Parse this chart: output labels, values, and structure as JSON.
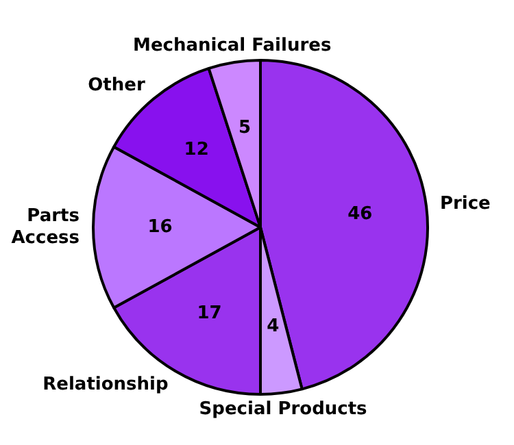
{
  "chart_data": {
    "type": "pie",
    "categories": [
      "Price",
      "Special Products",
      "Relationship",
      "Parts Access",
      "Other",
      "Mechanical Failures"
    ],
    "values": [
      46,
      4,
      17,
      16,
      12,
      5
    ],
    "colors": [
      "#9933ee",
      "#cc99ff",
      "#9933ee",
      "#bb77ff",
      "#8811ee",
      "#cc88ff"
    ],
    "data_labels": true,
    "legend": false
  }
}
